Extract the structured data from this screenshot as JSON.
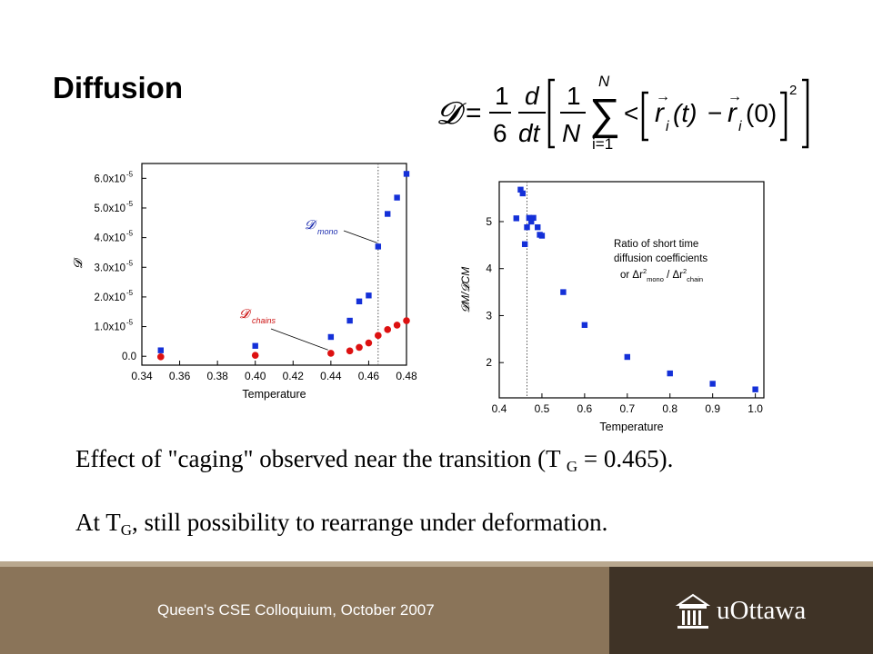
{
  "slide": {
    "title": "Diffusion",
    "formula": {
      "lhs": "𝓓",
      "eq": "=",
      "frac1_num": "1",
      "frac1_den": "6",
      "frac2_num": "d",
      "frac2_den": "dt",
      "frac3_num": "1",
      "frac3_den": "N",
      "sum_top": "N",
      "sum_bottom": "i=1",
      "lt": "<",
      "term_a": "r",
      "term_a_sub": "i",
      "term_a_arg": "(t)",
      "minus": "−",
      "term_b": "r",
      "term_b_sub": "i",
      "term_b_arg": "(0)",
      "power": "2"
    },
    "bullet1": {
      "pre": "Effect of \"caging\" observed near the transition (T ",
      "sub": "G",
      "post": " = 0.465)."
    },
    "bullet2": {
      "pre": "At T",
      "sub": "G",
      "post": ", still possibility to rearrange under deformation."
    },
    "footer": {
      "text": "Queen's CSE Colloquium, October 2007",
      "logo_text": "uOttawa"
    },
    "colors": {
      "footer_left": "#8a7459",
      "footer_right": "#3f3326",
      "blue_series": "#1430d8",
      "red_series": "#dd1111",
      "label_blue": "#2030b0",
      "label_red": "#cc1111"
    }
  },
  "chart_data": [
    {
      "type": "scatter",
      "xlabel": "Temperature",
      "ylabel": "𝓓",
      "xlim": [
        0.34,
        0.48
      ],
      "ylim": [
        -0.3,
        6.5
      ],
      "x_ticks": [
        "0.34",
        "0.36",
        "0.38",
        "0.40",
        "0.42",
        "0.44",
        "0.46",
        "0.48"
      ],
      "y_ticks": [
        "0.0",
        "1.0x10",
        "2.0x10",
        "3.0x10",
        "4.0x10",
        "5.0x10",
        "6.0x10"
      ],
      "y_tick_exponent": "-5",
      "vline": 0.465,
      "series": [
        {
          "name": "𝓓mono",
          "marker": "square",
          "x": [
            0.35,
            0.4,
            0.44,
            0.45,
            0.455,
            0.46,
            0.465,
            0.47,
            0.475,
            0.48
          ],
          "y": [
            0.2,
            0.35,
            0.65,
            1.2,
            1.85,
            2.05,
            3.7,
            4.8,
            5.35,
            6.15
          ]
        },
        {
          "name": "𝓓chains",
          "marker": "circle",
          "x": [
            0.35,
            0.4,
            0.44,
            0.45,
            0.455,
            0.46,
            0.465,
            0.47,
            0.475,
            0.48
          ],
          "y": [
            -0.02,
            0.03,
            0.1,
            0.18,
            0.3,
            0.45,
            0.7,
            0.9,
            1.05,
            1.2
          ]
        }
      ],
      "annotations": [
        {
          "main": "𝓓",
          "sub": "mono"
        },
        {
          "main": "𝓓",
          "sub": "chains"
        }
      ]
    },
    {
      "type": "scatter",
      "xlabel": "Temperature",
      "ylabel": "𝓓M/𝓓CM",
      "xlim": [
        0.4,
        1.02
      ],
      "ylim": [
        1.25,
        5.85
      ],
      "x_ticks": [
        "0.4",
        "0.5",
        "0.6",
        "0.7",
        "0.8",
        "0.9",
        "1.0"
      ],
      "y_ticks": [
        "2",
        "3",
        "4",
        "5"
      ],
      "vline": 0.465,
      "series": [
        {
          "marker": "square",
          "x": [
            0.44,
            0.45,
            0.455,
            0.46,
            0.465,
            0.47,
            0.475,
            0.48,
            0.49,
            0.495,
            0.5,
            0.55,
            0.6,
            0.7,
            0.8,
            0.9,
            1.0
          ],
          "y": [
            5.07,
            5.68,
            5.6,
            4.52,
            4.88,
            5.08,
            5.0,
            5.08,
            4.88,
            4.72,
            4.7,
            3.5,
            2.8,
            2.12,
            1.77,
            1.55,
            1.43
          ]
        }
      ],
      "annotation": {
        "line1": "Ratio of short time",
        "line2": "diffusion coefficients",
        "line3_pre": "or Δr",
        "line3_sup1": "2",
        "line3_sub1": "mono",
        "line3_mid": " / Δr",
        "line3_sup2": "2",
        "line3_sub2": "chain"
      }
    }
  ]
}
